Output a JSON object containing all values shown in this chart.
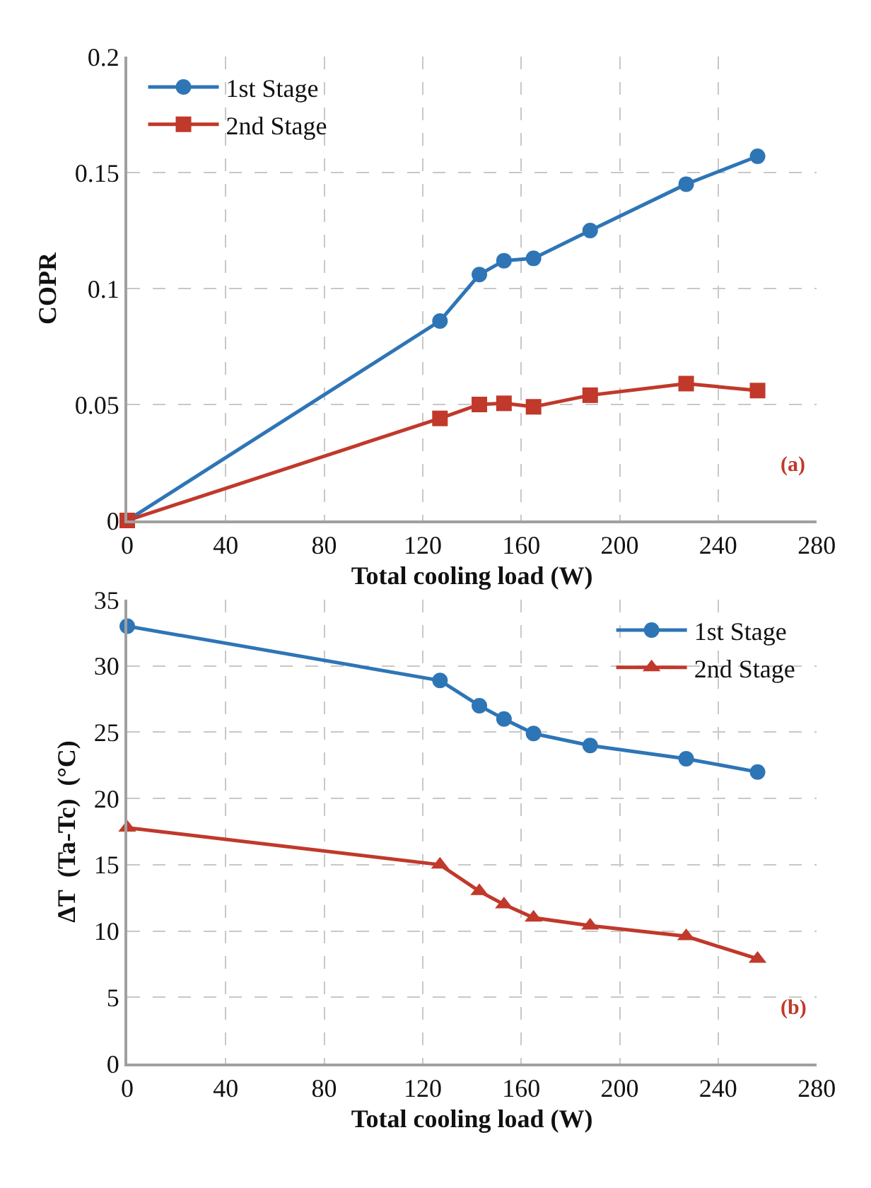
{
  "chart_data": [
    {
      "type": "line",
      "xlabel": "Total cooling load (W)",
      "ylabel": "COPR",
      "xlim": [
        0,
        280
      ],
      "xticks": [
        0,
        40,
        80,
        120,
        160,
        200,
        240,
        280
      ],
      "ylim": [
        0,
        0.2
      ],
      "yticks": [
        0,
        0.05,
        0.1,
        0.15,
        0.2
      ],
      "grid": true,
      "legend": "top left",
      "line_style": "solid",
      "annotations": [
        "(a)"
      ],
      "series": [
        {
          "name": "1st Stage",
          "color": "#2e75b6",
          "marker": "circle",
          "x": [
            0,
            127,
            143,
            153,
            165,
            188,
            227,
            256
          ],
          "values": [
            0,
            0.086,
            0.106,
            0.112,
            0.113,
            0.125,
            0.145,
            0.157
          ]
        },
        {
          "name": "2nd Stage",
          "color": "#c0392b",
          "marker": "square",
          "x": [
            0,
            127,
            143,
            153,
            165,
            188,
            227,
            256
          ],
          "values": [
            0,
            0.044,
            0.05,
            0.0505,
            0.049,
            0.054,
            0.059,
            0.056
          ]
        }
      ]
    },
    {
      "type": "line",
      "xlabel": "Total cooling load (W)",
      "ylabel": "ΔT  (Ta-Tc)  (°C)",
      "xlim": [
        0,
        280
      ],
      "xticks": [
        0,
        40,
        80,
        120,
        160,
        200,
        240,
        280
      ],
      "ylim": [
        0,
        35
      ],
      "yticks": [
        0,
        5,
        10,
        15,
        20,
        25,
        30,
        35
      ],
      "grid": true,
      "legend": "top right",
      "line_style": "solid",
      "annotations": [
        "(b)"
      ],
      "series": [
        {
          "name": "1st Stage",
          "color": "#2e75b6",
          "marker": "circle",
          "x": [
            0,
            127,
            143,
            153,
            165,
            188,
            227,
            256
          ],
          "values": [
            33,
            28.9,
            27,
            26,
            24.9,
            24,
            23,
            22
          ]
        },
        {
          "name": "2nd Stage",
          "color": "#c0392b",
          "marker": "triangle",
          "x": [
            0,
            127,
            143,
            153,
            165,
            188,
            227,
            256
          ],
          "values": [
            17.8,
            15,
            13,
            12,
            11,
            10.4,
            9.6,
            7.9
          ]
        }
      ]
    }
  ]
}
